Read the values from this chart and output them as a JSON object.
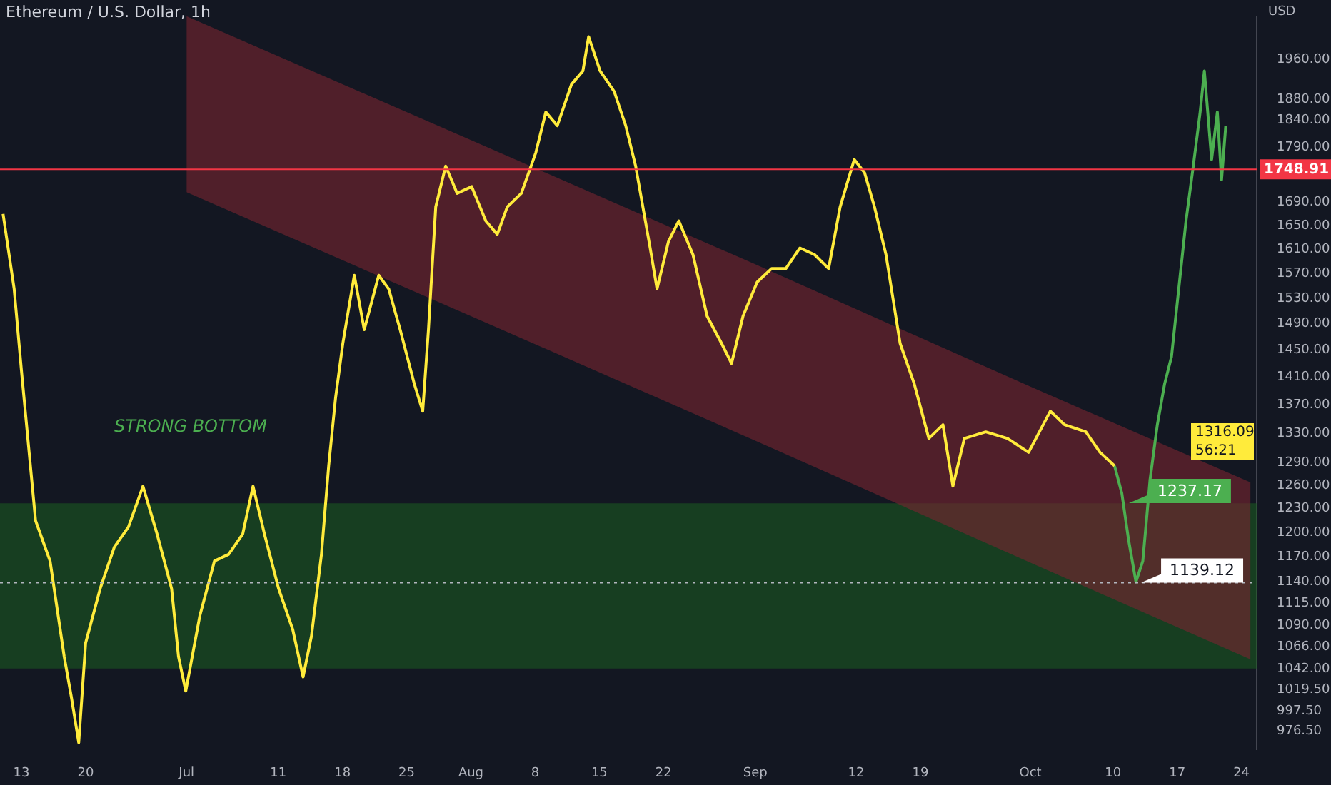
{
  "chart_data": {
    "type": "line",
    "title": "Ethereum / U.S. Dollar, 1h",
    "ylabel": "USD",
    "log": "y",
    "xlim": [
      "--06-10T16:00",
      "--10-25T16:00"
    ],
    "xticks": [
      {
        "value": "--06-13",
        "label": "13"
      },
      {
        "value": "--06-20",
        "label": "20"
      },
      {
        "value": "--07-01",
        "label": "Jul"
      },
      {
        "value": "--07-11",
        "label": "11"
      },
      {
        "value": "--07-18",
        "label": "18"
      },
      {
        "value": "--07-25",
        "label": "25"
      },
      {
        "value": "--08-01",
        "label": "Aug"
      },
      {
        "value": "--08-08",
        "label": "8"
      },
      {
        "value": "--08-15",
        "label": "15"
      },
      {
        "value": "--08-22",
        "label": "22"
      },
      {
        "value": "--09-01",
        "label": "Sep"
      },
      {
        "value": "--09-12",
        "label": "12"
      },
      {
        "value": "--09-19",
        "label": "19"
      },
      {
        "value": "--10-01",
        "label": "Oct"
      },
      {
        "value": "--10-10",
        "label": "10"
      },
      {
        "value": "--10-17",
        "label": "17"
      },
      {
        "value": "--10-24",
        "label": "24"
      }
    ],
    "ylim": [
      958,
      2050
    ],
    "yticks": [
      {
        "value": 976.5,
        "label": "976.50"
      },
      {
        "value": 997.5,
        "label": "997.50"
      },
      {
        "value": 1019.5,
        "label": "1019.50"
      },
      {
        "value": 1042,
        "label": "1042.00"
      },
      {
        "value": 1066,
        "label": "1066.00"
      },
      {
        "value": 1090,
        "label": "1090.00"
      },
      {
        "value": 1115,
        "label": "1115.00"
      },
      {
        "value": 1140,
        "label": "1140.00"
      },
      {
        "value": 1170,
        "label": "1170.00"
      },
      {
        "value": 1200,
        "label": "1200.00"
      },
      {
        "value": 1230,
        "label": "1230.00"
      },
      {
        "value": 1260,
        "label": "1260.00"
      },
      {
        "value": 1290,
        "label": "1290.00"
      },
      {
        "value": 1330,
        "label": "1330.00"
      },
      {
        "value": 1370,
        "label": "1370.00"
      },
      {
        "value": 1410,
        "label": "1410.00"
      },
      {
        "value": 1450,
        "label": "1450.00"
      },
      {
        "value": 1490,
        "label": "1490.00"
      },
      {
        "value": 1530,
        "label": "1530.00"
      },
      {
        "value": 1570,
        "label": "1570.00"
      },
      {
        "value": 1610,
        "label": "1610.00"
      },
      {
        "value": 1650,
        "label": "1650.00"
      },
      {
        "value": 1690,
        "label": "1690.00"
      },
      {
        "value": 1790,
        "label": "1790.00"
      },
      {
        "value": 1840,
        "label": "1840.00"
      },
      {
        "value": 1880,
        "label": "1880.00"
      },
      {
        "value": 1960,
        "label": "1960.00"
      }
    ],
    "series": [
      {
        "type": "area",
        "color": "#7a2430",
        "x": [
          "--07-01",
          "--08-01",
          "--09-01",
          "--10-01",
          "--10-25"
        ],
        "values": [
          null,
          null,
          null,
          null,
          null
        ],
        "lower": [
          1708,
          1502,
          1320,
          1163,
          1052
        ],
        "upper": [
          2050,
          1803,
          1585,
          1396,
          1264
        ]
      },
      {
        "type": "line",
        "color": "#ffeb3b",
        "x": [
          "--06-11T00:00",
          "--06-12T05:00",
          "--06-13T00:00",
          "--06-14T13:00",
          "--06-16T03:00",
          "--06-17T16:00",
          "--06-18T11:00",
          "--06-19T06:00",
          "--06-20T00:00",
          "--06-21T14:00",
          "--06-23T03:00",
          "--06-24T16:00",
          "--06-26T06:00",
          "--06-27T19:00",
          "--06-29T09:00",
          "--06-30T03:00",
          "--06-30T22:00",
          "--07-02T11:00",
          "--07-04T01:00",
          "--07-05T14:00",
          "--07-07T03:00",
          "--07-08T06:00",
          "--07-09T12:00",
          "--07-11T01:00",
          "--07-12T14:00",
          "--07-13T17:00",
          "--07-14T15:00",
          "--07-15T17:00",
          "--07-16T12:00",
          "--07-17T06:00",
          "--07-18T01:00",
          "--07-19T07:00",
          "--07-20T09:00",
          "--07-21T23:00",
          "--07-23T01:00",
          "--07-24T07:00",
          "--07-25T20:00",
          "--07-26T18:00",
          "--07-27T09:00",
          "--07-28T04:00",
          "--07-29T06:00",
          "--07-30T12:00",
          "--08-01T02:00",
          "--08-02T15:00",
          "--08-03T21:00",
          "--08-04T23:00",
          "--08-06T12:00",
          "--08-08T02:00",
          "--08-09T04:00",
          "--08-10T10:00",
          "--08-11T23:00",
          "--08-13T05:00",
          "--08-13T20:00",
          "--08-15T02:00",
          "--08-16T15:00",
          "--08-17T21:00",
          "--08-18T23:00",
          "--08-19T18:00",
          "--08-20T13:00",
          "--08-21T07:00",
          "--08-22T13:00",
          "--08-23T16:00",
          "--08-25T05:00",
          "--08-26T18:00",
          "--08-28T08:00",
          "--08-29T10:00",
          "--08-30T16:00",
          "--09-01T05:00",
          "--09-02T19:00",
          "--09-04T08:00",
          "--09-05T21:00",
          "--09-07T11:00",
          "--09-09T00:00",
          "--09-10T06:00",
          "--09-11T19:00",
          "--09-12T22:00",
          "--09-14T00:00",
          "--09-15T06:00",
          "--09-16T19:00",
          "--09-18T08:00",
          "--09-19T22:00",
          "--09-21T11:00",
          "--09-22T13:00",
          "--09-23T19:00",
          "--09-26T03:00",
          "--09-28T12:00",
          "--09-30T19:00",
          "--10-03T04:00",
          "--10-04T17:00",
          "--10-07T01:00",
          "--10-08T14:00",
          "--10-10T04:00"
        ],
        "values": [
          1670,
          1545,
          1420,
          1215,
          1165,
          1055,
          1011,
          965,
          1070,
          1132,
          1182,
          1207,
          1259,
          1198,
          1132,
          1055,
          1018,
          1101,
          1165,
          1173,
          1198,
          1259,
          1198,
          1132,
          1085,
          1033,
          1078,
          1173,
          1286,
          1380,
          1460,
          1567,
          1481,
          1567,
          1545,
          1481,
          1400,
          1361,
          1481,
          1682,
          1755,
          1706,
          1718,
          1658,
          1635,
          1682,
          1706,
          1780,
          1856,
          1830,
          1910,
          1937,
          2007,
          1937,
          1896,
          1830,
          1755,
          1682,
          1612,
          1545,
          1623,
          1658,
          1601,
          1502,
          1460,
          1430,
          1502,
          1556,
          1578,
          1578,
          1612,
          1601,
          1578,
          1682,
          1767,
          1743,
          1682,
          1601,
          1460,
          1400,
          1323,
          1342,
          1259,
          1323,
          1332,
          1323,
          1304,
          1361,
          1342,
          1332,
          1304,
          1286
        ]
      },
      {
        "type": "line",
        "color": "#4caf50",
        "x": [
          "--10-10T04:00",
          "--10-10T23:00",
          "--10-11T17:00",
          "--10-12T12:00",
          "--10-13T06:00",
          "--10-14T01:00",
          "--10-14T20:00",
          "--10-15T15:00",
          "--10-16T09:00",
          "--10-17T04:00",
          "--10-17T23:00",
          "--10-18T18:00",
          "--10-19T12:00",
          "--10-19T23:00",
          "--10-20T18:00",
          "--10-21T09:00",
          "--10-21T20:00",
          "--10-22T07:00"
        ],
        "values": [
          1286,
          1250,
          1190,
          1140,
          1165,
          1268,
          1342,
          1400,
          1440,
          1545,
          1658,
          1755,
          1856,
          1937,
          1767,
          1856,
          1730,
          1830
        ]
      }
    ],
    "bands": [
      {
        "axis": "y",
        "from": 1042,
        "to": 1237,
        "color": "#1b5e20"
      }
    ],
    "ref_lines": [
      {
        "axis": "y",
        "value": 1748.91,
        "label": "1748.91",
        "color": "#f23645",
        "line_style": "solid"
      },
      {
        "axis": "y",
        "value": 1139.12,
        "color": "#b2b5be",
        "line_style": "dotted"
      }
    ],
    "annotations": [
      "STRONG BOTTOM",
      {
        "text": "1237.17",
        "x": "--10-11T10:00",
        "y": 1237.17
      },
      {
        "text": "1139.12",
        "x": "--10-12T18:00",
        "y": 1139.12
      },
      "1316.09",
      "56:21"
    ]
  }
}
